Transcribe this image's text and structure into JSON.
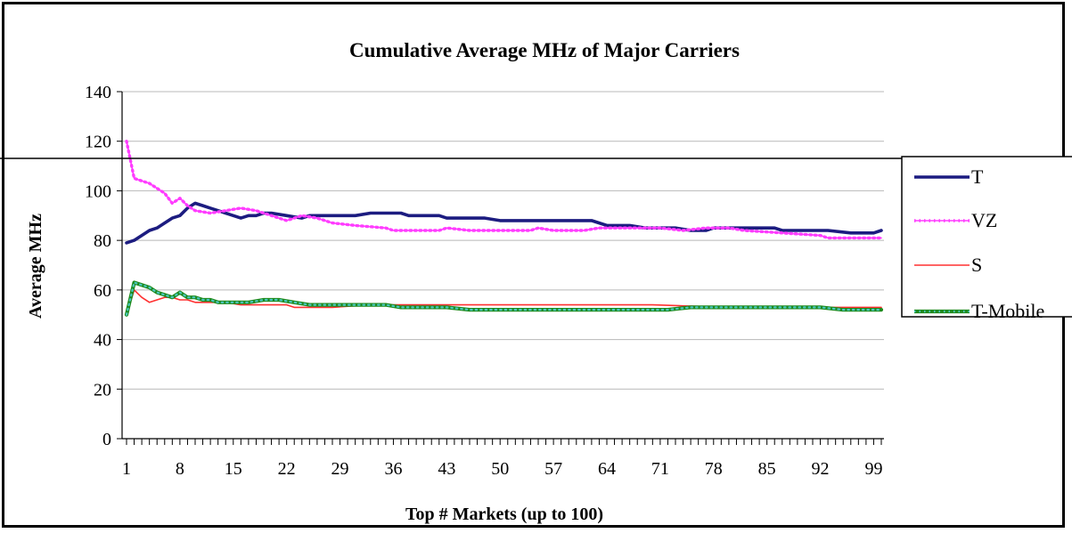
{
  "chart_data": {
    "type": "line",
    "title": "Cumulative Average MHz of Major Carriers",
    "xlabel": "Top # Markets (up to 100)",
    "ylabel": "Average MHz",
    "xlim": [
      1,
      100
    ],
    "ylim": [
      0,
      140
    ],
    "y_ticks": [
      0,
      20,
      40,
      60,
      80,
      100,
      120,
      140
    ],
    "x_ticks": [
      1,
      8,
      15,
      22,
      29,
      36,
      43,
      50,
      57,
      64,
      71,
      78,
      85,
      92,
      99
    ],
    "grid": "horizontal",
    "legend_position": "right",
    "colors": {
      "T": "#1c1c80",
      "VZ": "#ff3cff",
      "S": "#ff3030",
      "T-Mobile": "#1e8a1e",
      "T-Mobile-dots": "#49c8c0"
    },
    "series": [
      {
        "name": "T",
        "points": [
          [
            1,
            79
          ],
          [
            2,
            80
          ],
          [
            3,
            82
          ],
          [
            4,
            84
          ],
          [
            5,
            85
          ],
          [
            6,
            87
          ],
          [
            7,
            89
          ],
          [
            8,
            90
          ],
          [
            9,
            93
          ],
          [
            10,
            95
          ],
          [
            11,
            94
          ],
          [
            12,
            93
          ],
          [
            13,
            92
          ],
          [
            14,
            91
          ],
          [
            15,
            90
          ],
          [
            16,
            89
          ],
          [
            17,
            90
          ],
          [
            18,
            90
          ],
          [
            19,
            91
          ],
          [
            20,
            91
          ],
          [
            22,
            90
          ],
          [
            24,
            89
          ],
          [
            25,
            90
          ],
          [
            28,
            90
          ],
          [
            31,
            90
          ],
          [
            33,
            91
          ],
          [
            37,
            91
          ],
          [
            38,
            90
          ],
          [
            42,
            90
          ],
          [
            43,
            89
          ],
          [
            48,
            89
          ],
          [
            50,
            88
          ],
          [
            62,
            88
          ],
          [
            64,
            86
          ],
          [
            67,
            86
          ],
          [
            69,
            85
          ],
          [
            73,
            85
          ],
          [
            75,
            84
          ],
          [
            77,
            84
          ],
          [
            78,
            85
          ],
          [
            86,
            85
          ],
          [
            87,
            84
          ],
          [
            92,
            84
          ],
          [
            93,
            84
          ],
          [
            96,
            83
          ],
          [
            99,
            83
          ],
          [
            100,
            84
          ]
        ]
      },
      {
        "name": "VZ",
        "points": [
          [
            1,
            120
          ],
          [
            2,
            105
          ],
          [
            3,
            104
          ],
          [
            4,
            103
          ],
          [
            5,
            101
          ],
          [
            6,
            99
          ],
          [
            7,
            95
          ],
          [
            8,
            97
          ],
          [
            9,
            94
          ],
          [
            10,
            92
          ],
          [
            12,
            91
          ],
          [
            14,
            92
          ],
          [
            16,
            93
          ],
          [
            18,
            92
          ],
          [
            19,
            91
          ],
          [
            21,
            89
          ],
          [
            22,
            88
          ],
          [
            23,
            89
          ],
          [
            24,
            90
          ],
          [
            26,
            89
          ],
          [
            28,
            87
          ],
          [
            31,
            86
          ],
          [
            35,
            85
          ],
          [
            36,
            84
          ],
          [
            40,
            84
          ],
          [
            42,
            84
          ],
          [
            43,
            85
          ],
          [
            46,
            84
          ],
          [
            50,
            84
          ],
          [
            54,
            84
          ],
          [
            55,
            85
          ],
          [
            57,
            84
          ],
          [
            61,
            84
          ],
          [
            63,
            85
          ],
          [
            68,
            85
          ],
          [
            71,
            85
          ],
          [
            74,
            84
          ],
          [
            77,
            85
          ],
          [
            80,
            85
          ],
          [
            82,
            84
          ],
          [
            87,
            83
          ],
          [
            92,
            82
          ],
          [
            93,
            81
          ],
          [
            100,
            81
          ]
        ]
      },
      {
        "name": "S",
        "points": [
          [
            1,
            50
          ],
          [
            2,
            60
          ],
          [
            3,
            57
          ],
          [
            4,
            55
          ],
          [
            5,
            56
          ],
          [
            6,
            57
          ],
          [
            7,
            57
          ],
          [
            8,
            56
          ],
          [
            9,
            56
          ],
          [
            10,
            55
          ],
          [
            12,
            55
          ],
          [
            14,
            55
          ],
          [
            16,
            54
          ],
          [
            20,
            54
          ],
          [
            22,
            54
          ],
          [
            23,
            53
          ],
          [
            28,
            53
          ],
          [
            33,
            54
          ],
          [
            38,
            54
          ],
          [
            40,
            54
          ],
          [
            56,
            54
          ],
          [
            70,
            54
          ],
          [
            80,
            53
          ],
          [
            90,
            53
          ],
          [
            100,
            53
          ]
        ]
      },
      {
        "name": "T-Mobile",
        "points": [
          [
            1,
            50
          ],
          [
            2,
            63
          ],
          [
            3,
            62
          ],
          [
            4,
            61
          ],
          [
            5,
            59
          ],
          [
            6,
            58
          ],
          [
            7,
            57
          ],
          [
            8,
            59
          ],
          [
            9,
            57
          ],
          [
            10,
            57
          ],
          [
            11,
            56
          ],
          [
            12,
            56
          ],
          [
            13,
            55
          ],
          [
            15,
            55
          ],
          [
            17,
            55
          ],
          [
            19,
            56
          ],
          [
            21,
            56
          ],
          [
            23,
            55
          ],
          [
            25,
            54
          ],
          [
            28,
            54
          ],
          [
            31,
            54
          ],
          [
            35,
            54
          ],
          [
            37,
            53
          ],
          [
            40,
            53
          ],
          [
            43,
            53
          ],
          [
            46,
            52
          ],
          [
            52,
            52
          ],
          [
            60,
            52
          ],
          [
            72,
            52
          ],
          [
            75,
            53
          ],
          [
            85,
            53
          ],
          [
            87,
            53
          ],
          [
            90,
            53
          ],
          [
            92,
            53
          ],
          [
            95,
            52
          ],
          [
            100,
            52
          ]
        ]
      }
    ]
  }
}
